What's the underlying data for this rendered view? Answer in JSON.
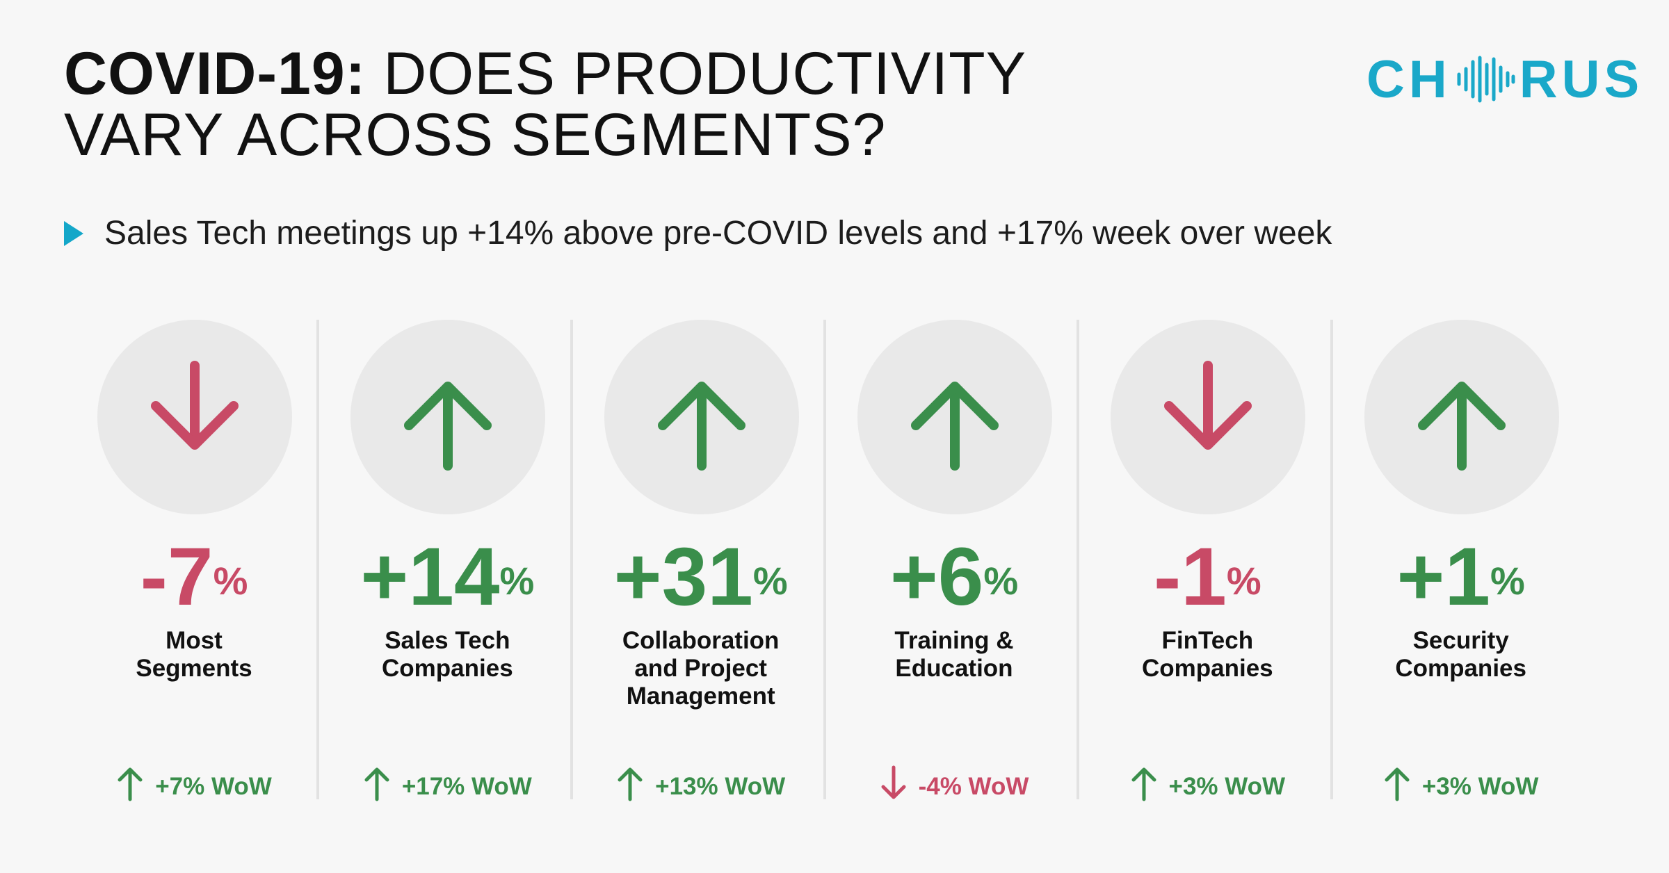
{
  "title": {
    "lead": "COVID-19:",
    "rest_line1": "DOES PRODUCTIVITY",
    "line2": "VARY ACROSS SEGMENTS?"
  },
  "logo": {
    "left": "CH",
    "right": "RUS",
    "color": "#1aa8c9"
  },
  "subtitle": "Sales Tech meetings up +14% above pre-COVID levels and +17% week over week",
  "colors": {
    "up": "#3a8e4b",
    "down": "#c84a66",
    "accent": "#14a7c9"
  },
  "segments": [
    {
      "direction": "down",
      "icon": "arrow-down-icon",
      "value": "-7",
      "unit": "%",
      "label": [
        "Most",
        "Segments"
      ],
      "wow_direction": "up",
      "wow": "+7% WoW"
    },
    {
      "direction": "up",
      "icon": "arrow-up-icon",
      "value": "+14",
      "unit": "%",
      "label": [
        "Sales Tech",
        "Companies"
      ],
      "wow_direction": "up",
      "wow": "+17% WoW"
    },
    {
      "direction": "up",
      "icon": "arrow-up-icon",
      "value": "+31",
      "unit": "%",
      "label": [
        "Collaboration",
        "and Project",
        "Management"
      ],
      "wow_direction": "up",
      "wow": "+13% WoW"
    },
    {
      "direction": "up",
      "icon": "arrow-up-icon",
      "value": "+6",
      "unit": "%",
      "label": [
        "Training &",
        "Education"
      ],
      "wow_direction": "down",
      "wow": "-4% WoW"
    },
    {
      "direction": "down",
      "icon": "arrow-down-icon",
      "value": "-1",
      "unit": "%",
      "label": [
        "FinTech",
        "Companies"
      ],
      "wow_direction": "up",
      "wow": "+3% WoW"
    },
    {
      "direction": "up",
      "icon": "arrow-up-icon",
      "value": "+1",
      "unit": "%",
      "label": [
        "Security",
        "Companies"
      ],
      "wow_direction": "up",
      "wow": "+3% WoW"
    }
  ]
}
